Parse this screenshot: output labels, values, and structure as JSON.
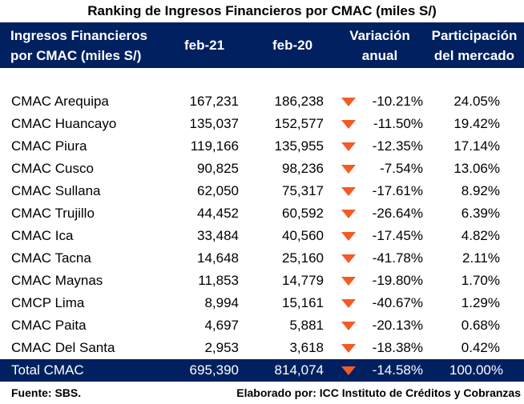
{
  "title": "Ranking de Ingresos Financieros por CMAC (miles S/)",
  "header": {
    "col1_line1": "Ingresos Financieros",
    "col1_line2": "por CMAC (miles S/)",
    "col2": "feb-21",
    "col3": "feb-20",
    "col4_line1": "Variación",
    "col4_line2": "anual",
    "col5_line1": "Participación",
    "col5_line2": "del mercado"
  },
  "rows": [
    {
      "name": "CMAC Arequipa",
      "feb21": "167,231",
      "feb20": "186,238",
      "var": "-10.21%",
      "share": "24.05%"
    },
    {
      "name": "CMAC Huancayo",
      "feb21": "135,037",
      "feb20": "152,577",
      "var": "-11.50%",
      "share": "19.42%"
    },
    {
      "name": "CMAC Piura",
      "feb21": "119,166",
      "feb20": "135,955",
      "var": "-12.35%",
      "share": "17.14%"
    },
    {
      "name": "CMAC Cusco",
      "feb21": "90,825",
      "feb20": "98,236",
      "var": "-7.54%",
      "share": "13.06%"
    },
    {
      "name": "CMAC Sullana",
      "feb21": "62,050",
      "feb20": "75,317",
      "var": "-17.61%",
      "share": "8.92%"
    },
    {
      "name": "CMAC Trujillo",
      "feb21": "44,452",
      "feb20": "60,592",
      "var": "-26.64%",
      "share": "6.39%"
    },
    {
      "name": "CMAC Ica",
      "feb21": "33,484",
      "feb20": "40,560",
      "var": "-17.45%",
      "share": "4.82%"
    },
    {
      "name": "CMAC Tacna",
      "feb21": "14,648",
      "feb20": "25,160",
      "var": "-41.78%",
      "share": "2.11%"
    },
    {
      "name": "CMAC Maynas",
      "feb21": "11,853",
      "feb20": "14,779",
      "var": "-19.80%",
      "share": "1.70%"
    },
    {
      "name": "CMCP Lima",
      "feb21": "8,994",
      "feb20": "15,161",
      "var": "-40.67%",
      "share": "1.29%"
    },
    {
      "name": "CMAC Paita",
      "feb21": "4,697",
      "feb20": "5,881",
      "var": "-20.13%",
      "share": "0.68%"
    },
    {
      "name": "CMAC Del Santa",
      "feb21": "2,953",
      "feb20": "3,618",
      "var": "-18.38%",
      "share": "0.42%"
    }
  ],
  "total": {
    "name": "Total CMAC",
    "feb21": "695,390",
    "feb20": "814,074",
    "var": "-14.58%",
    "share": "100.00%"
  },
  "footer": {
    "source": "Fuente: SBS.",
    "credit": "Elaborado por: ICC Instituto de Créditos y Cobranzas"
  },
  "colors": {
    "header_bg": "#002060",
    "down_arrow": "#f35b24"
  },
  "icons": {
    "variation": "down-arrow-icon"
  }
}
